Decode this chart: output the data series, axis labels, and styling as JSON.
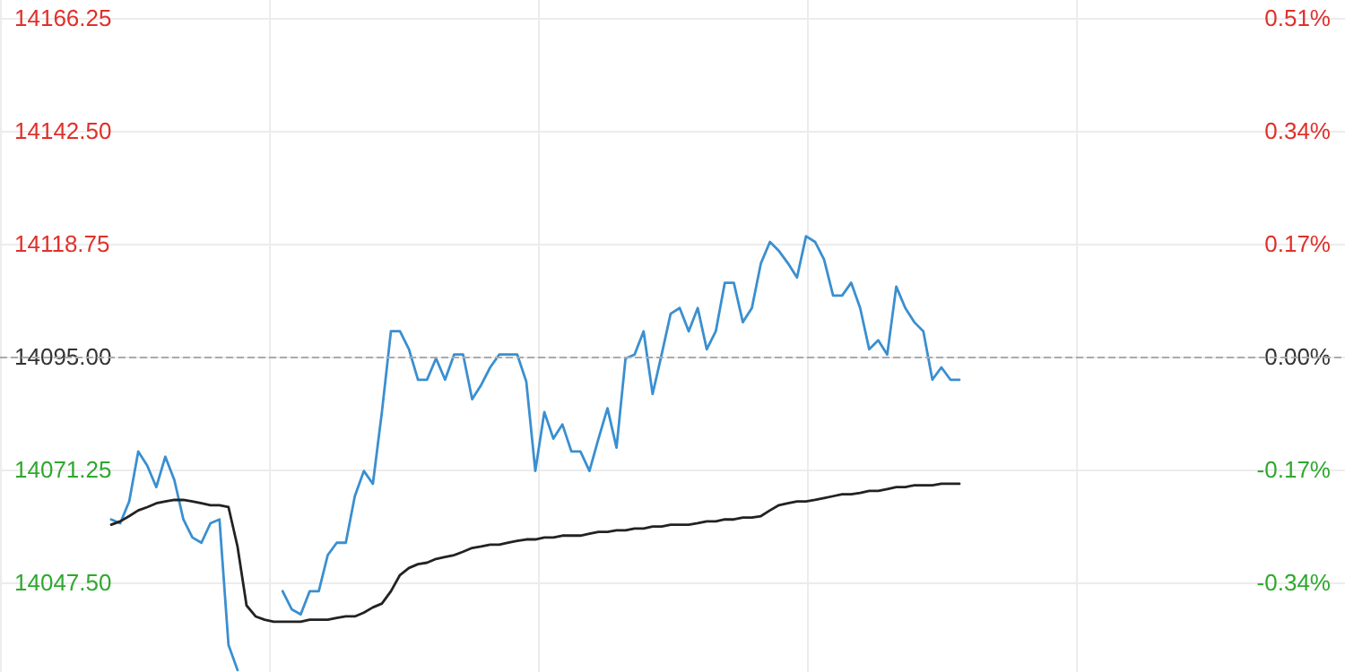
{
  "chart_data": {
    "type": "line",
    "categories": [
      null,
      null,
      null,
      null,
      null,
      null,
      null,
      null,
      null,
      null,
      null,
      null,
      null,
      null,
      null,
      null,
      null,
      null,
      null,
      null,
      null,
      null,
      null,
      null,
      null,
      null,
      null,
      null,
      null,
      null,
      null,
      null,
      null,
      null,
      null,
      null,
      null,
      null,
      null,
      null,
      null,
      null,
      null,
      null,
      null,
      null,
      null,
      null,
      null,
      null,
      null,
      null,
      null,
      null,
      null,
      null,
      null,
      null,
      null,
      null,
      null,
      null,
      null,
      null,
      null,
      null,
      null,
      null,
      null,
      null,
      null,
      null,
      null,
      null,
      null,
      null,
      null,
      null,
      null,
      null,
      null,
      null,
      null,
      null,
      null,
      null,
      null,
      null,
      null,
      null,
      null,
      null,
      null,
      null,
      null
    ],
    "series": [
      {
        "color": "#3a8fd0",
        "values": [
          14060.7,
          14059.9,
          14064.5,
          14075.0,
          14072.0,
          14067.5,
          14073.9,
          14069.0,
          14060.7,
          14056.9,
          14055.8,
          14059.9,
          14060.7,
          14034.3,
          14029.0,
          null,
          null,
          null,
          null,
          14045.6,
          14041.8,
          14040.7,
          14045.6,
          14045.6,
          14053.2,
          14055.8,
          14055.8,
          14065.6,
          14070.9,
          14068.2,
          14083.3,
          14100.3,
          14100.3,
          14096.5,
          14090.1,
          14090.1,
          14094.6,
          14090.1,
          14095.4,
          14095.4,
          14086.0,
          14089.0,
          14092.7,
          14095.4,
          14095.4,
          14095.4,
          14089.7,
          14070.9,
          14083.3,
          14077.7,
          14080.7,
          14075.0,
          14075.0,
          14070.9,
          14077.7,
          14084.1,
          14075.8,
          14094.6,
          14095.4,
          14100.3,
          14087.1,
          14095.4,
          14104.0,
          14105.2,
          14100.3,
          14105.2,
          14096.5,
          14100.3,
          14110.5,
          14110.5,
          14102.2,
          14105.2,
          14114.6,
          14119.1,
          14117.2,
          14114.6,
          14111.6,
          14120.3,
          14119.1,
          14115.4,
          14107.8,
          14107.8,
          14110.5,
          14105.2,
          14096.5,
          14098.4,
          14095.4,
          14109.7,
          14105.2,
          14102.2,
          14100.3,
          14090.1,
          14092.7,
          14090.1,
          14090.1
        ]
      },
      {
        "color": "#222222",
        "values": [
          14059.6,
          14060.3,
          14061.4,
          14062.6,
          14063.3,
          14064.1,
          14064.5,
          14064.8,
          14064.8,
          14064.5,
          14064.1,
          14063.7,
          14063.7,
          14063.3,
          14055.0,
          14042.6,
          14040.3,
          14039.6,
          14039.2,
          14039.2,
          14039.2,
          14039.2,
          14039.6,
          14039.6,
          14039.6,
          14040.0,
          14040.3,
          14040.3,
          14041.1,
          14042.2,
          14043.0,
          14045.6,
          14049.0,
          14050.5,
          14051.3,
          14051.6,
          14052.4,
          14052.8,
          14053.2,
          14053.9,
          14054.7,
          14055.0,
          14055.4,
          14055.4,
          14055.8,
          14056.2,
          14056.5,
          14056.5,
          14056.9,
          14056.9,
          14057.3,
          14057.3,
          14057.3,
          14057.7,
          14058.1,
          14058.1,
          14058.4,
          14058.4,
          14058.8,
          14058.8,
          14059.2,
          14059.2,
          14059.6,
          14059.6,
          14059.6,
          14059.9,
          14060.3,
          14060.3,
          14060.7,
          14060.7,
          14061.1,
          14061.1,
          14061.4,
          14062.6,
          14063.7,
          14064.1,
          14064.5,
          14064.5,
          14064.8,
          14065.2,
          14065.6,
          14066.0,
          14066.0,
          14066.3,
          14066.7,
          14066.7,
          14067.1,
          14067.5,
          14067.5,
          14067.9,
          14067.9,
          14067.9,
          14068.2,
          14068.2,
          14068.2
        ]
      }
    ],
    "ylim": [
      14028.6,
      14170
    ],
    "yticks": [
      {
        "value": 14047.5,
        "label": "14047.50"
      },
      {
        "value": 14071.25,
        "label": "14071.25"
      },
      {
        "value": 14095,
        "label": "14095.00"
      },
      {
        "value": 14118.75,
        "label": "14118.75"
      },
      {
        "value": 14142.5,
        "label": "14142.50"
      },
      14166.25
    ],
    "y2lim": [
      -0.471,
      0.532
    ],
    "y2ticks": [
      {
        "value": -0.337,
        "label": "-0.34%"
      },
      {
        "value": -0.1685,
        "label": "-0.17%"
      },
      {
        "value": 0,
        "label": "0.00%"
      },
      {
        "value": 0.1685,
        "label": "0.17%"
      },
      {
        "value": 0.337,
        "label": "0.34%"
      },
      {
        "value": 0.5055,
        "label": "0.51%"
      }
    ],
    "ref_lines": [
      {
        "axis": "y",
        "value": 14095,
        "color": "#aaaaaa",
        "line_style": "dashed"
      }
    ],
    "grid": true,
    "line_style": "solid"
  }
}
